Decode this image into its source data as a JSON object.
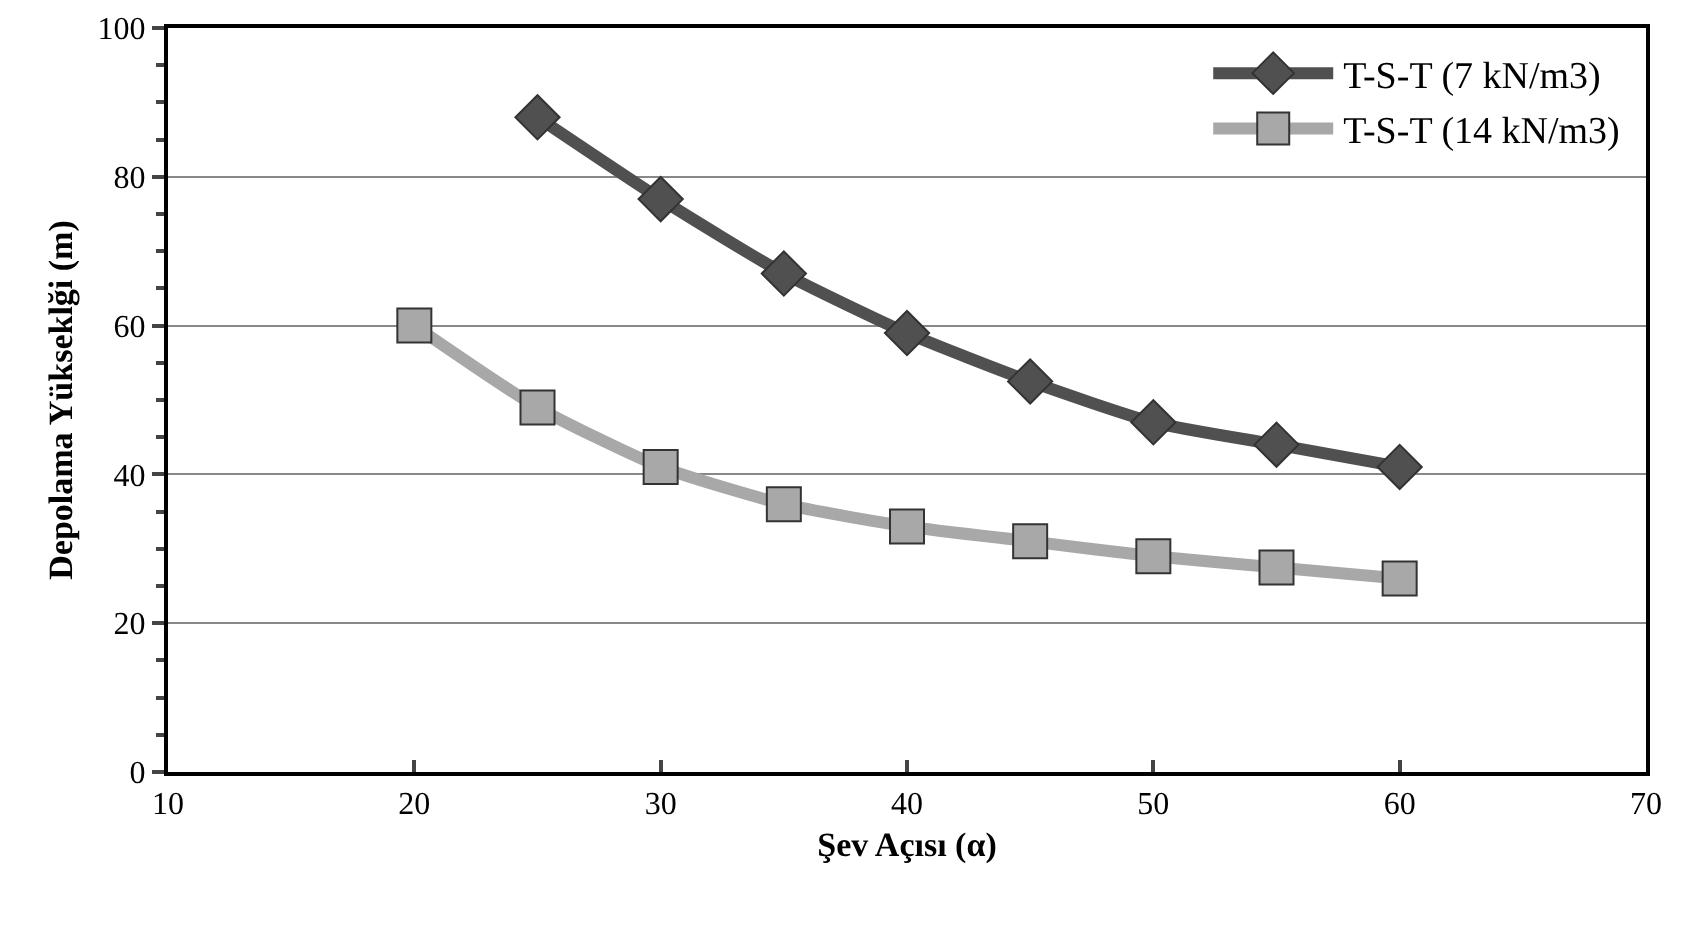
{
  "chart_data": {
    "type": "line",
    "xlabel": "Şev Açısı (α)",
    "ylabel": "Depolama Yükseklği (m)",
    "xlim": [
      10,
      70
    ],
    "xticks": [
      10,
      20,
      30,
      40,
      50,
      60,
      70
    ],
    "ylim": [
      0,
      100
    ],
    "yticks": [
      0,
      20,
      40,
      60,
      80,
      100
    ],
    "grid": "y",
    "legend": "top right",
    "line_style": "solid",
    "series": [
      {
        "name": "T-S-T (7 kN/m3)",
        "color": "#505050",
        "marker": "diamond",
        "x": [
          25,
          30,
          35,
          40,
          45,
          50,
          55,
          60
        ],
        "values": [
          88,
          77,
          67,
          59,
          52.5,
          47,
          44,
          41
        ]
      },
      {
        "name": "T-S-T (14 kN/m3)",
        "color": "#a8a8a8",
        "marker": "square",
        "x": [
          20,
          25,
          30,
          35,
          40,
          45,
          50,
          55,
          60
        ],
        "values": [
          60,
          49,
          41,
          36,
          33,
          31,
          29,
          27.5,
          26
        ]
      }
    ]
  }
}
